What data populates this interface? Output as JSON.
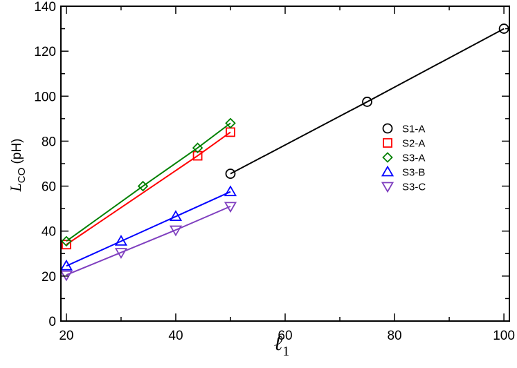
{
  "chart_data": {
    "type": "line",
    "xlabel": "ℓ1",
    "xlabel_main": "ℓ",
    "xlabel_sub": "1",
    "ylabel": "L_CO (pH)",
    "ylabel_main": "L",
    "ylabel_sub": "CO",
    "ylabel_unit": " (pH)",
    "xlim": [
      19,
      101
    ],
    "ylim": [
      0,
      140
    ],
    "xticks": [
      20,
      40,
      60,
      80,
      100
    ],
    "yticks": [
      0,
      20,
      40,
      60,
      80,
      100,
      120,
      140
    ],
    "grid": false,
    "legend_position": "right-center",
    "series": [
      {
        "name": "S1-A",
        "marker": "circle",
        "color": "#000000",
        "x": [
          50,
          75,
          100
        ],
        "y": [
          65.5,
          97.5,
          130
        ]
      },
      {
        "name": "S2-A",
        "marker": "square",
        "color": "#ff0000",
        "x": [
          20,
          44,
          50
        ],
        "y": [
          34,
          73.5,
          84
        ]
      },
      {
        "name": "S3-A",
        "marker": "diamond",
        "color": "#008000",
        "x": [
          20,
          34,
          44,
          50
        ],
        "y": [
          35.5,
          60,
          77,
          88
        ]
      },
      {
        "name": "S3-B",
        "marker": "triangle-up",
        "color": "#0000ff",
        "x": [
          20,
          30,
          40,
          50
        ],
        "y": [
          24.5,
          35.5,
          46.5,
          57.5
        ]
      },
      {
        "name": "S3-C",
        "marker": "triangle-down",
        "color": "#7f3fbf",
        "x": [
          20,
          30,
          40,
          50
        ],
        "y": [
          20.5,
          30.5,
          40.5,
          51
        ]
      }
    ]
  }
}
